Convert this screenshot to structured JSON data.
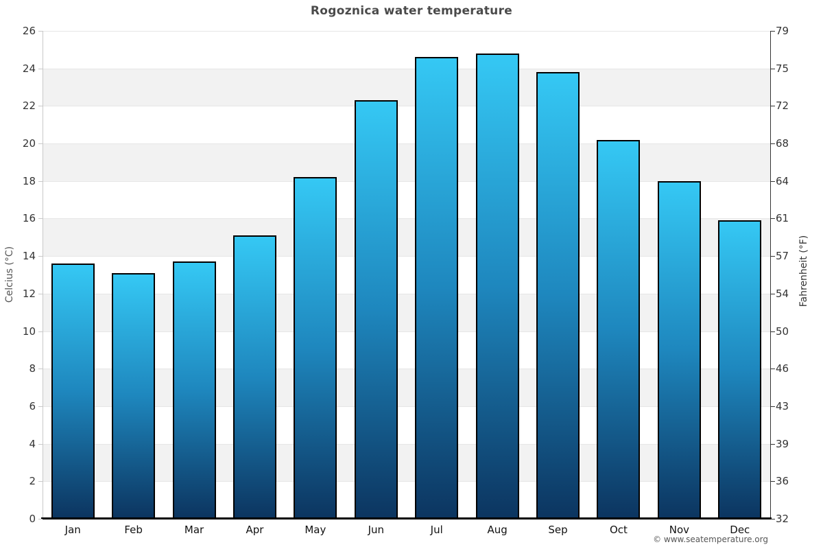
{
  "page": {
    "footer_credit": "© www.seatemperature.org"
  },
  "chart_data": {
    "type": "bar",
    "title": "Rogoznica water temperature",
    "categories": [
      "Jan",
      "Feb",
      "Mar",
      "Apr",
      "May",
      "Jun",
      "Jul",
      "Aug",
      "Sep",
      "Oct",
      "Nov",
      "Dec"
    ],
    "series": [
      {
        "name": "Water temperature",
        "unit": "°C",
        "values": [
          13.6,
          13.1,
          13.7,
          15.1,
          18.2,
          22.3,
          24.6,
          24.8,
          23.8,
          20.2,
          18.0,
          15.9
        ]
      }
    ],
    "xlabel": "",
    "ylabel_left": "Celcius (°C)",
    "ylabel_right": "Fahrenheit (°F)",
    "ylim_left": [
      0,
      26
    ],
    "yticks_left": [
      0,
      2,
      4,
      6,
      8,
      10,
      12,
      14,
      16,
      18,
      20,
      22,
      24,
      26
    ],
    "yticks_right_labels": [
      "32",
      "36",
      "39",
      "43",
      "46",
      "50",
      "54",
      "57",
      "61",
      "64",
      "68",
      "72",
      "75",
      "79"
    ],
    "grid": true,
    "alternating_bands": true,
    "legend_position": "none",
    "colors": {
      "bar_gradient_top": "#35c8f4",
      "bar_gradient_mid": "#1e87be",
      "bar_gradient_bottom": "#0c3560",
      "bar_border": "#000000",
      "band_gray": "#f2f2f2",
      "gridline": "#e6e6e6",
      "left_spine": "#c8c8c8",
      "right_spine": "#333333",
      "bottom_axis": "#000000",
      "title": "#4a4a4a",
      "tick_label": "#333333"
    }
  }
}
